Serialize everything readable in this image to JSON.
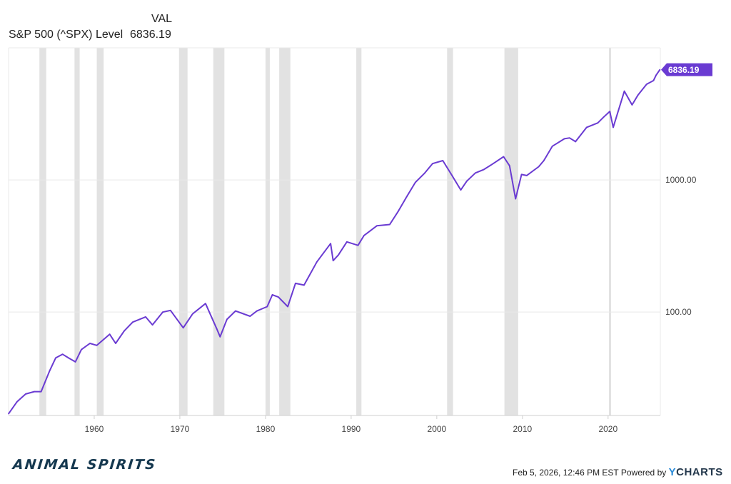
{
  "legend": {
    "column_header": "VAL",
    "series_name": "S&P 500 (^SPX) Level",
    "series_value": "6836.19"
  },
  "footer": {
    "timestamp": "Feb 5, 2026, 12:46 PM EST Powered by",
    "ycharts_y": "Y",
    "ycharts_rest": "CHARTS"
  },
  "branding": {
    "logo_text": "ANIMAL SPIRITS"
  },
  "colors": {
    "series": "#6a3bd2",
    "recession": "#e2e2e2",
    "grid": "#e9e9e9"
  },
  "chart_data": {
    "type": "line",
    "y_scale": "log",
    "xlim": [
      1950,
      2026.1
    ],
    "ylim": [
      16.5,
      10000
    ],
    "x_ticks": [
      1960,
      1970,
      1980,
      1990,
      2000,
      2010,
      2020
    ],
    "y_ticks": [
      {
        "value": 1000,
        "label": "1000.00"
      },
      {
        "value": 100,
        "label": "100.00"
      }
    ],
    "last_value_label": "6836.19",
    "recessions": [
      [
        1953.6,
        1954.4
      ],
      [
        1957.7,
        1958.3
      ],
      [
        1960.3,
        1961.1
      ],
      [
        1969.9,
        1970.9
      ],
      [
        1973.9,
        1975.2
      ],
      [
        1980.0,
        1980.5
      ],
      [
        1981.6,
        1982.9
      ],
      [
        1990.6,
        1991.2
      ],
      [
        2001.2,
        2001.9
      ],
      [
        2007.9,
        2009.5
      ],
      [
        2020.1,
        2020.3
      ]
    ],
    "series": [
      {
        "x": [
          1950,
          1951,
          1952,
          1953,
          1953.8,
          1954.8,
          1955.5,
          1956.3,
          1957,
          1957.8,
          1958.5,
          1959.5,
          1960.3,
          1961.8,
          1962.5,
          1963.5,
          1964.5,
          1966,
          1966.8,
          1968,
          1968.9,
          1970.4,
          1971.5,
          1972,
          1973,
          1974.3,
          1974.7,
          1975.5,
          1976.5,
          1978.2,
          1979,
          1980.2,
          1980.8,
          1981.5,
          1982.6,
          1983.5,
          1984.5,
          1986,
          1987.6,
          1987.9,
          1988.5,
          1989.5,
          1990.8,
          1991.5,
          1993,
          1994.5,
          1995.5,
          1996.5,
          1997.5,
          1998.6,
          1999.5,
          2000.7,
          2001.7,
          2002.8,
          2003.5,
          2004.5,
          2005.5,
          2006.5,
          2007.8,
          2008.5,
          2009.2,
          2009.9,
          2010.5,
          2011.9,
          2012.5,
          2013.5,
          2014.9,
          2015.5,
          2016.2,
          2017.5,
          2018.8,
          2019.5,
          2020.2,
          2020.6,
          2021.9,
          2022.8,
          2023.5,
          2024.5,
          2025.3,
          2025.6,
          2026.05
        ],
        "y": [
          17,
          21,
          24,
          25,
          25,
          36,
          45,
          48,
          45,
          42,
          52,
          58,
          56,
          68,
          58,
          72,
          84,
          92,
          80,
          100,
          103,
          76,
          97,
          103,
          116,
          75,
          65,
          88,
          102,
          93,
          102,
          110,
          135,
          130,
          110,
          165,
          160,
          240,
          330,
          245,
          270,
          340,
          320,
          380,
          450,
          460,
          580,
          750,
          960,
          1130,
          1330,
          1400,
          1100,
          840,
          980,
          1130,
          1200,
          1320,
          1500,
          1280,
          720,
          1100,
          1080,
          1260,
          1400,
          1800,
          2050,
          2080,
          1950,
          2500,
          2700,
          3000,
          3300,
          2500,
          4700,
          3700,
          4400,
          5300,
          5650,
          6200,
          6836.19
        ]
      }
    ]
  }
}
